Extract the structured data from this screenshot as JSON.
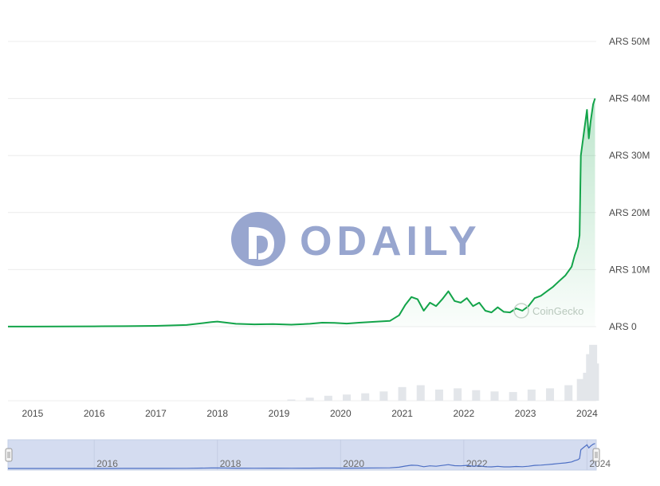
{
  "watermark": {
    "brand": "ODAILY",
    "source": "CoinGecko"
  },
  "colors": {
    "line": "#13a44a",
    "area_top": "#13a44a",
    "volume": "#e3e6ea",
    "grid": "#ececec",
    "navigator_fill": "#d4dcf0",
    "navigator_line": "#4d6fc4",
    "watermark": "#98a6cf"
  },
  "chart_data": {
    "type": "area",
    "currency": "ARS",
    "y_ticks": [
      "ARS 0",
      "ARS 10M",
      "ARS 20M",
      "ARS 30M",
      "ARS 40M",
      "ARS 50M"
    ],
    "y_tick_values": [
      0,
      10000000,
      20000000,
      30000000,
      40000000,
      50000000
    ],
    "ylim": [
      0,
      50000000
    ],
    "x_ticks": [
      "2015",
      "2016",
      "2017",
      "2018",
      "2019",
      "2020",
      "2021",
      "2022",
      "2023",
      "2024"
    ],
    "xlim": [
      2014.6,
      2024.15
    ],
    "grid": true,
    "legend": "none",
    "series": [
      {
        "x": [
          2014.6,
          2015.0,
          2015.5,
          2016.0,
          2016.5,
          2017.0,
          2017.5,
          2017.9,
          2018.0,
          2018.3,
          2018.6,
          2018.9,
          2019.2,
          2019.5,
          2019.7,
          2019.9,
          2020.1,
          2020.3,
          2020.6,
          2020.8,
          2020.95,
          2021.05,
          2021.15,
          2021.25,
          2021.35,
          2021.45,
          2021.55,
          2021.65,
          2021.75,
          2021.85,
          2021.95,
          2022.05,
          2022.15,
          2022.25,
          2022.35,
          2022.45,
          2022.55,
          2022.65,
          2022.75,
          2022.85,
          2022.95,
          2023.05,
          2023.15,
          2023.25,
          2023.35,
          2023.45,
          2023.55,
          2023.65,
          2023.75,
          2023.8,
          2023.85,
          2023.88,
          2023.9,
          2023.95,
          2024.0,
          2024.03,
          2024.06,
          2024.1,
          2024.13
        ],
        "values": [
          10000,
          20000,
          30000,
          60000,
          90000,
          140000,
          300000,
          800000,
          900000,
          500000,
          400000,
          450000,
          350000,
          500000,
          700000,
          650000,
          550000,
          700000,
          900000,
          1000000,
          2000000,
          3800000,
          5200000,
          4800000,
          2800000,
          4200000,
          3600000,
          4800000,
          6200000,
          4500000,
          4200000,
          5000000,
          3600000,
          4200000,
          2800000,
          2500000,
          3400000,
          2600000,
          2500000,
          3200000,
          2800000,
          3600000,
          5000000,
          5400000,
          6200000,
          7000000,
          8000000,
          9000000,
          10500000,
          12500000,
          14000000,
          16000000,
          30000000,
          34000000,
          38000000,
          33000000,
          36000000,
          39000000,
          40000000
        ]
      }
    ],
    "volume_series": {
      "x": [
        2019.2,
        2019.5,
        2019.8,
        2020.1,
        2020.4,
        2020.7,
        2021.0,
        2021.3,
        2021.6,
        2021.9,
        2022.2,
        2022.5,
        2022.8,
        2023.1,
        2023.4,
        2023.7,
        2023.9,
        2024.0,
        2024.05,
        2024.1,
        2024.13
      ],
      "values": [
        0.02,
        0.05,
        0.08,
        0.1,
        0.12,
        0.15,
        0.22,
        0.25,
        0.18,
        0.2,
        0.17,
        0.15,
        0.14,
        0.18,
        0.2,
        0.25,
        0.35,
        0.45,
        0.75,
        0.9,
        0.6
      ]
    }
  },
  "navigator": {
    "ticks": [
      "2016",
      "2018",
      "2020",
      "2022",
      "2024"
    ],
    "tick_values": [
      2016,
      2018,
      2020,
      2022,
      2024
    ],
    "xlim": [
      2014.6,
      2024.15
    ]
  }
}
